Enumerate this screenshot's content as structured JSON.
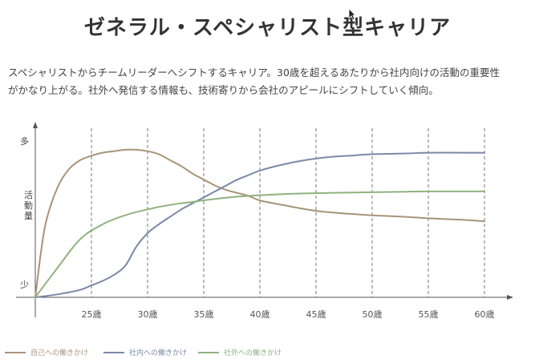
{
  "page": {
    "title": "ゼネラル・スペシャリスト型キャリア",
    "intro_line1": "スペシャリストからチームリーダーへシフトするキャリア。30歳を超えるあたりから社内向けの活動の重要性",
    "intro_line2": "がかなり上がる。社外へ発信する情報も、技術寄りから会社のアピールにシフトしていく傾向。"
  },
  "chart_data": {
    "type": "line",
    "title": "",
    "xlabel": "",
    "ylabel": "活動量",
    "y_top_label": "多",
    "y_bottom_label": "少",
    "x_ticks": [
      25,
      30,
      35,
      40,
      45,
      50,
      55,
      60
    ],
    "x_tick_labels": [
      "25歳",
      "30歳",
      "35歳",
      "40歳",
      "45歳",
      "50歳",
      "55歳",
      "60歳"
    ],
    "xlim": [
      20,
      61
    ],
    "ylim": [
      0,
      100
    ],
    "grid": "vertical dashed at each tick",
    "legend_position": "bottom-left",
    "series": [
      {
        "name": "自己への働きかけ",
        "color": "#a8937a",
        "x": [
          20,
          20.5,
          21,
          22,
          23,
          24,
          25,
          26,
          27,
          28,
          29,
          30,
          31,
          32,
          33,
          34,
          35,
          36,
          37,
          38,
          39,
          40,
          42,
          45,
          48,
          50,
          53,
          55,
          58,
          60
        ],
        "y": [
          0,
          30,
          52,
          74,
          86,
          92,
          95,
          97,
          98,
          99,
          99,
          98,
          96,
          92,
          88,
          83,
          79,
          75,
          72,
          70,
          68,
          65,
          62,
          58,
          56,
          55,
          54,
          53,
          52,
          51
        ]
      },
      {
        "name": "社内への働きかけ",
        "color": "#7a89a8",
        "x": [
          20,
          22,
          24,
          25,
          26,
          27,
          28,
          29,
          30,
          31,
          32,
          33,
          34,
          35,
          36,
          37,
          38,
          39,
          40,
          42,
          44,
          46,
          48,
          50,
          53,
          55,
          58,
          60
        ],
        "y": [
          0,
          2,
          5,
          8,
          11,
          15,
          21,
          34,
          43,
          49,
          54,
          59,
          63,
          67,
          71,
          75,
          79,
          82,
          85,
          89,
          92,
          94,
          95,
          96,
          96.5,
          97,
          97,
          97
        ]
      },
      {
        "name": "社外への働きかけ",
        "color": "#8fb27f",
        "x": [
          20,
          22,
          24,
          26,
          28,
          30,
          32,
          34,
          36,
          38,
          40,
          43,
          46,
          50,
          55,
          60
        ],
        "y": [
          0,
          20,
          39,
          49,
          55,
          59,
          62,
          64,
          66,
          67.5,
          68.5,
          69.5,
          70,
          70.5,
          71,
          71
        ]
      }
    ]
  }
}
